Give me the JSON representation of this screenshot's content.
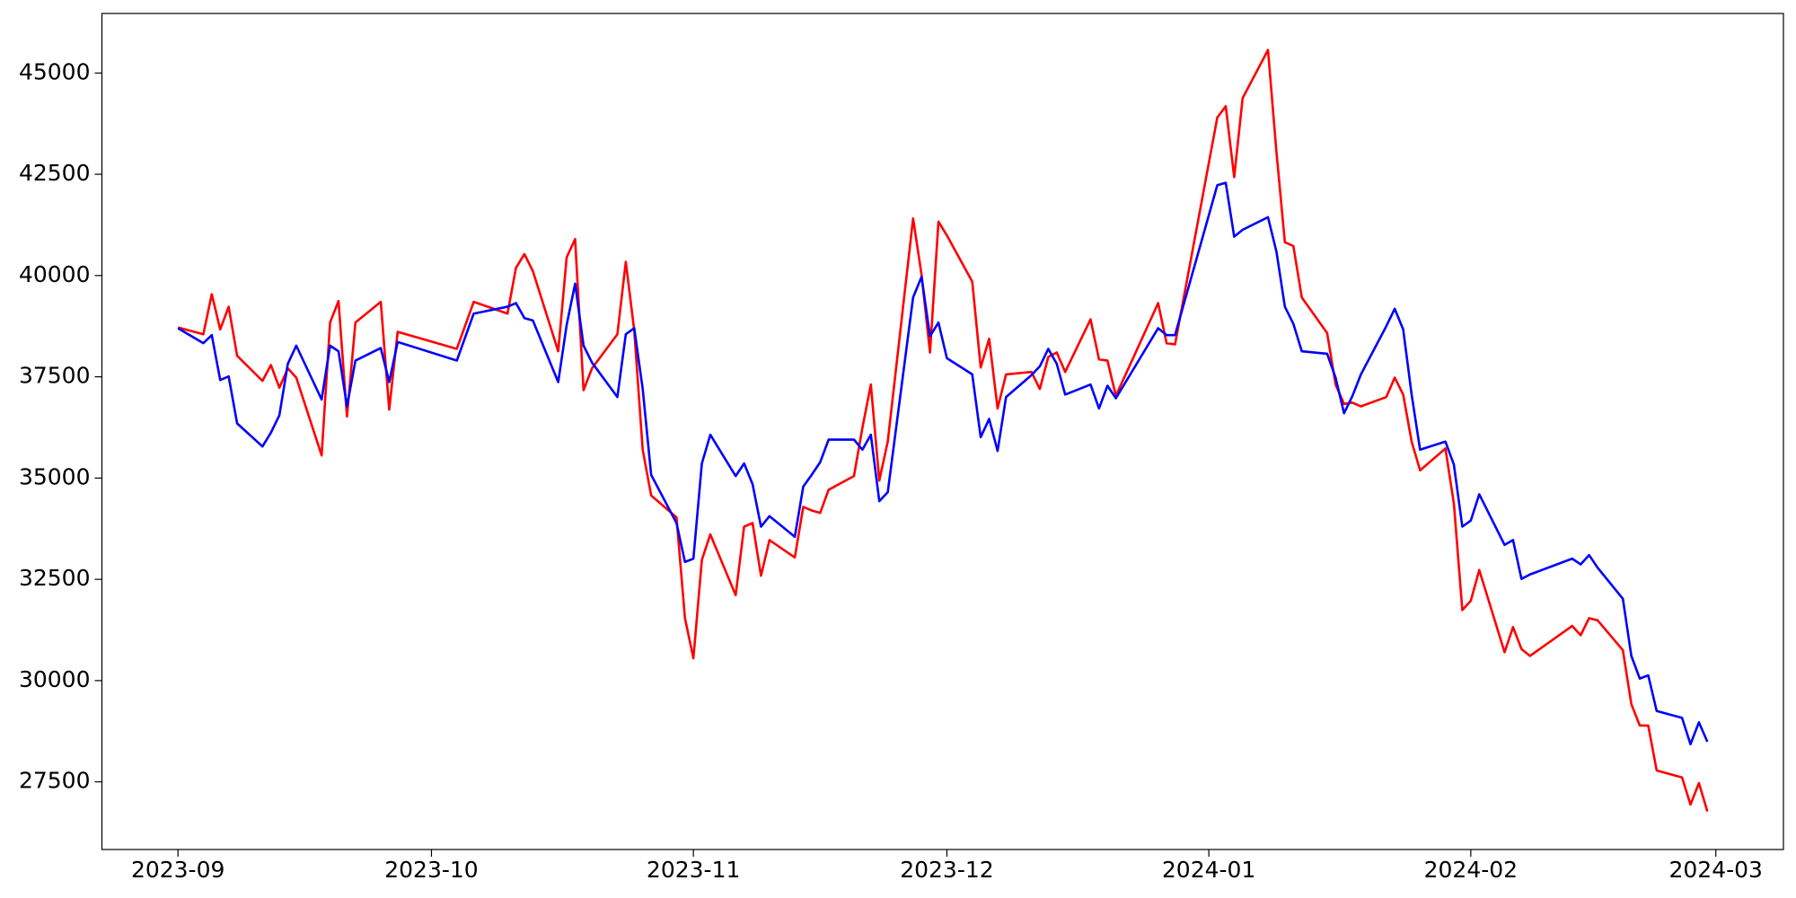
{
  "chart_data": {
    "type": "line",
    "x": [
      "2023-09-01",
      "2023-09-04",
      "2023-09-05",
      "2023-09-06",
      "2023-09-07",
      "2023-09-08",
      "2023-09-11",
      "2023-09-12",
      "2023-09-13",
      "2023-09-14",
      "2023-09-15",
      "2023-09-18",
      "2023-09-19",
      "2023-09-20",
      "2023-09-21",
      "2023-09-22",
      "2023-09-25",
      "2023-09-26",
      "2023-09-27",
      "2023-10-04",
      "2023-10-06",
      "2023-10-10",
      "2023-10-11",
      "2023-10-12",
      "2023-10-13",
      "2023-10-16",
      "2023-10-17",
      "2023-10-18",
      "2023-10-19",
      "2023-10-20",
      "2023-10-23",
      "2023-10-24",
      "2023-10-25",
      "2023-10-26",
      "2023-10-27",
      "2023-10-30",
      "2023-10-31",
      "2023-11-01",
      "2023-11-02",
      "2023-11-03",
      "2023-11-06",
      "2023-11-07",
      "2023-11-08",
      "2023-11-09",
      "2023-11-10",
      "2023-11-13",
      "2023-11-14",
      "2023-11-15",
      "2023-11-16",
      "2023-11-17",
      "2023-11-20",
      "2023-11-21",
      "2023-11-22",
      "2023-11-23",
      "2023-11-24",
      "2023-11-27",
      "2023-11-28",
      "2023-11-29",
      "2023-11-30",
      "2023-12-01",
      "2023-12-04",
      "2023-12-05",
      "2023-12-06",
      "2023-12-07",
      "2023-12-08",
      "2023-12-11",
      "2023-12-12",
      "2023-12-13",
      "2023-12-14",
      "2023-12-15",
      "2023-12-18",
      "2023-12-19",
      "2023-12-20",
      "2023-12-21",
      "2023-12-26",
      "2023-12-27",
      "2023-12-28",
      "2024-01-02",
      "2024-01-03",
      "2024-01-04",
      "2024-01-05",
      "2024-01-08",
      "2024-01-09",
      "2024-01-10",
      "2024-01-11",
      "2024-01-12",
      "2024-01-15",
      "2024-01-16",
      "2024-01-17",
      "2024-01-18",
      "2024-01-19",
      "2024-01-22",
      "2024-01-23",
      "2024-01-24",
      "2024-01-25",
      "2024-01-26",
      "2024-01-29",
      "2024-01-30",
      "2024-01-31",
      "2024-02-01",
      "2024-02-02",
      "2024-02-05",
      "2024-02-06",
      "2024-02-07",
      "2024-02-08",
      "2024-02-13",
      "2024-02-14",
      "2024-02-15",
      "2024-02-16",
      "2024-02-19",
      "2024-02-20",
      "2024-02-21",
      "2024-02-22",
      "2024-02-23",
      "2024-02-26",
      "2024-02-27",
      "2024-02-28",
      "2024-02-29"
    ],
    "series": [
      {
        "color": "#ff0000",
        "values": [
          38720,
          38550,
          39540,
          38670,
          39230,
          38020,
          37400,
          37790,
          37230,
          37710,
          37480,
          35560,
          38840,
          39370,
          36520,
          38840,
          39350,
          36690,
          38610,
          38190,
          39350,
          39060,
          40190,
          40530,
          40110,
          38130,
          40450,
          40900,
          37170,
          37710,
          38550,
          40340,
          38640,
          35700,
          34570,
          34030,
          31540,
          30550,
          32980,
          33610,
          32110,
          33800,
          33890,
          32590,
          33470,
          33040,
          34290,
          34200,
          34140,
          34710,
          35050,
          36240,
          37310,
          34940,
          35900,
          41410,
          40020,
          38100,
          41330,
          40990,
          39850,
          37730,
          38440,
          36720,
          37560,
          37620,
          37200,
          37990,
          38100,
          37620,
          38920,
          37930,
          37900,
          37030,
          39320,
          38330,
          38300,
          43900,
          44180,
          42430,
          44380,
          45570,
          43050,
          40820,
          40730,
          39460,
          38580,
          37310,
          36830,
          36860,
          36770,
          37000,
          37480,
          37060,
          35900,
          35190,
          35730,
          34370,
          31740,
          31970,
          32730,
          30700,
          31320,
          30780,
          30610,
          31350,
          31120,
          31540,
          31490,
          30750,
          29420,
          28890,
          28890,
          27780,
          27610,
          26940,
          27470,
          26770
        ]
      },
      {
        "color": "#0000ff",
        "values": [
          38700,
          38330,
          38530,
          37420,
          37510,
          36350,
          35780,
          36120,
          36550,
          37820,
          38270,
          36940,
          38270,
          38130,
          36770,
          37900,
          38210,
          37370,
          38360,
          37900,
          39060,
          39230,
          39320,
          38950,
          38890,
          37370,
          38780,
          39800,
          38270,
          37850,
          37000,
          38550,
          38700,
          37200,
          35080,
          33890,
          32930,
          33010,
          35360,
          36070,
          35050,
          35360,
          34850,
          33800,
          34060,
          33550,
          34790,
          35080,
          35390,
          35950,
          35950,
          35700,
          36070,
          34430,
          34650,
          39460,
          39970,
          38500,
          38840,
          37960,
          37560,
          36010,
          36460,
          35670,
          37000,
          37540,
          37760,
          38190,
          37820,
          37060,
          37310,
          36720,
          37280,
          36970,
          38700,
          38530,
          38530,
          42230,
          42290,
          40960,
          41130,
          41440,
          40590,
          39230,
          38810,
          38130,
          38070,
          37480,
          36600,
          37030,
          37560,
          38750,
          39180,
          38670,
          37060,
          35700,
          35900,
          35330,
          33800,
          33950,
          34600,
          33350,
          33470,
          32510,
          32620,
          33010,
          32870,
          33100,
          32790,
          32020,
          30610,
          30050,
          30130,
          29250,
          29080,
          28430,
          28970,
          28490
        ]
      }
    ],
    "xlim": [
      "2023-08-23",
      "2024-03-09"
    ],
    "xticks": [
      {
        "value": "2023-09-01",
        "label": "2023-09"
      },
      {
        "value": "2023-10-01",
        "label": "2023-10"
      },
      {
        "value": "2023-11-01",
        "label": "2023-11"
      },
      {
        "value": "2023-12-01",
        "label": "2023-12"
      },
      {
        "value": "2024-01-01",
        "label": "2024-01"
      },
      {
        "value": "2024-02-01",
        "label": "2024-02"
      },
      {
        "value": "2024-03-01",
        "label": "2024-03"
      }
    ],
    "ylim": [
      25830,
      46470
    ],
    "yticks": [
      27500,
      30000,
      32500,
      35000,
      37500,
      40000,
      42500,
      45000
    ],
    "grid": false
  }
}
